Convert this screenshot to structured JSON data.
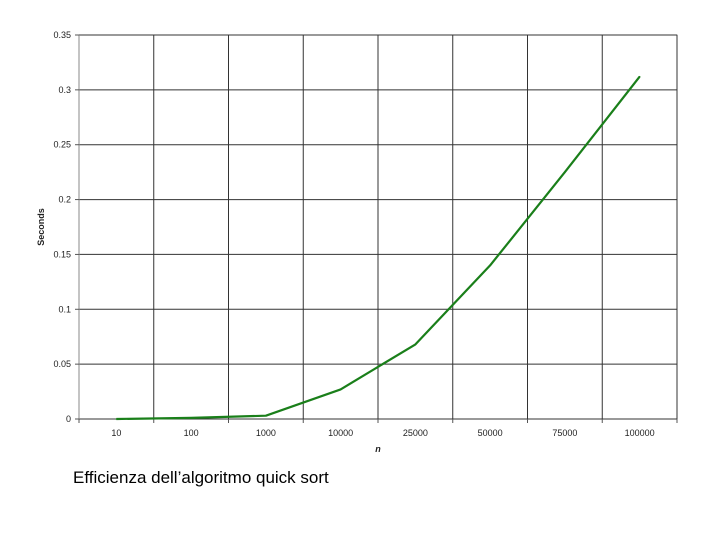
{
  "caption": "Efficienza dell’algoritmo quick sort",
  "chart_data": {
    "type": "line",
    "categories": [
      "10",
      "100",
      "1000",
      "10000",
      "25000",
      "50000",
      "75000",
      "100000"
    ],
    "series": [
      {
        "values": [
          0.0,
          0.001,
          0.003,
          0.027,
          0.068,
          0.14,
          0.225,
          0.312
        ],
        "color": "#1a7f1a"
      }
    ],
    "xlabel": "n",
    "ylabel": "Seconds",
    "ylim": [
      0,
      0.35
    ],
    "yticks": [
      0,
      0.05,
      0.1,
      0.15,
      0.2,
      0.25,
      0.3,
      0.35
    ],
    "ytick_labels": [
      "0",
      "0.05",
      "0.1",
      "0.15",
      "0.2",
      "0.25",
      "0.3",
      "0.35"
    ],
    "grid": true,
    "gridline_color": "#333333"
  }
}
